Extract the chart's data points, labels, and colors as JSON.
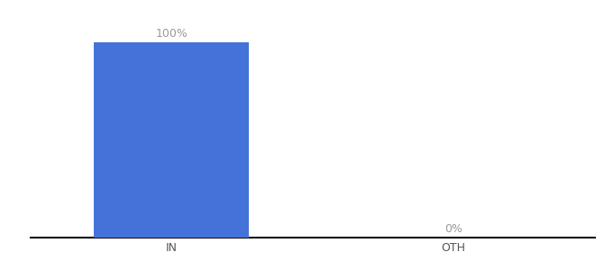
{
  "categories": [
    "IN",
    "OTH"
  ],
  "values": [
    100,
    0
  ],
  "bar_color": "#4472d9",
  "label_color": "#999999",
  "label_fontsize": 9,
  "tick_fontsize": 9,
  "tick_color": "#555555",
  "background_color": "#ffffff",
  "bar_width": 0.55,
  "ylim": [
    0,
    115
  ],
  "spine_color": "#111111",
  "value_labels": [
    "100%",
    "0%"
  ],
  "xlim": [
    -0.5,
    1.5
  ]
}
